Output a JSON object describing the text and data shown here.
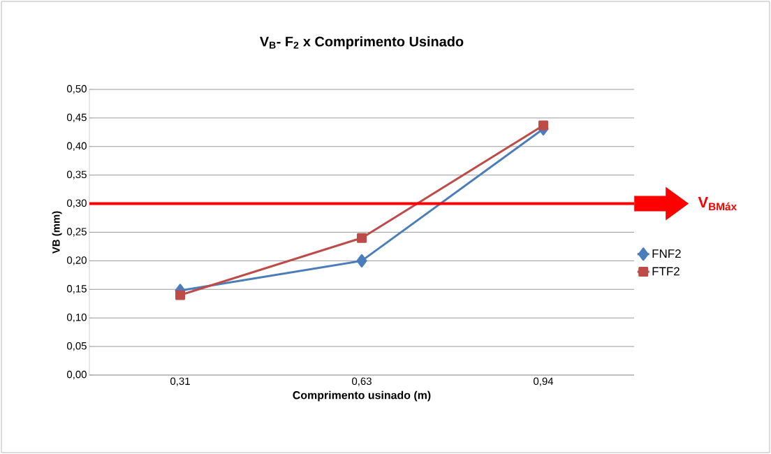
{
  "chart_data": {
    "type": "line",
    "title": "V$_{B}$- F$_{2}$ x Comprimento Usinado",
    "xlabel": "Comprimento usinado (m)",
    "ylabel": "VB (mm)",
    "categories": [
      "0,31",
      "0,63",
      "0,94"
    ],
    "series": [
      {
        "name": "FNF2",
        "color": "#4a7ebb",
        "marker": "diamond",
        "values": [
          0.148,
          0.2,
          0.431
        ]
      },
      {
        "name": "FTF2",
        "color": "#be4b48",
        "marker": "square",
        "values": [
          0.14,
          0.24,
          0.437
        ]
      }
    ],
    "ylim": [
      0,
      0.5
    ],
    "yticks": [
      {
        "value": 0,
        "label": "0,00"
      },
      {
        "value": 0.05,
        "label": "0,05"
      },
      {
        "value": 0.1,
        "label": "0,10"
      },
      {
        "value": 0.15,
        "label": "0,15"
      },
      {
        "value": 0.2,
        "label": "0,20"
      },
      {
        "value": 0.25,
        "label": "0,25"
      },
      {
        "value": 0.3,
        "label": "0,30"
      },
      {
        "value": 0.35,
        "label": "0,35"
      },
      {
        "value": 0.4,
        "label": "0,40"
      },
      {
        "value": 0.45,
        "label": "0,45"
      },
      {
        "value": 0.5,
        "label": "0,50"
      }
    ],
    "ref_lines": [
      {
        "axis": "y",
        "value": 0.3,
        "label": "V$_{BMáx}$",
        "color": "#ff0000",
        "line_style": "solid"
      }
    ],
    "grid": "y",
    "legend": "right",
    "line_style": "solid"
  }
}
